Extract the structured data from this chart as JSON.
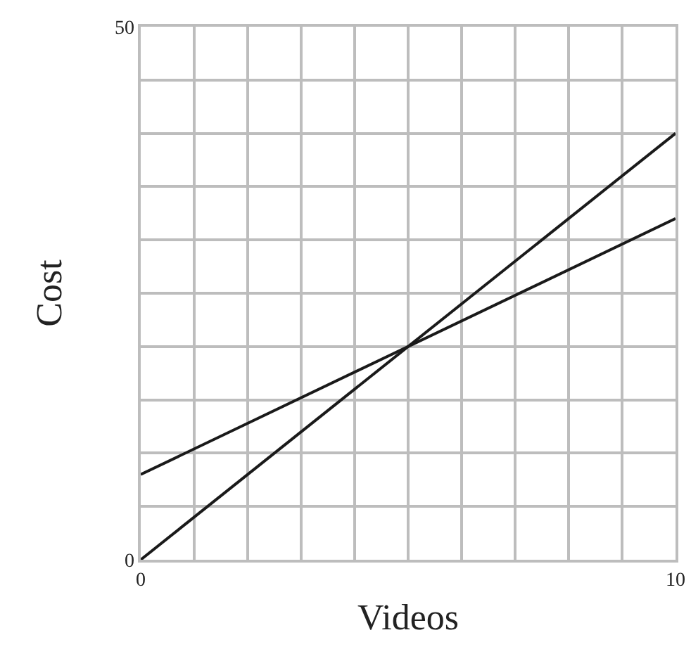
{
  "chart_data": {
    "type": "line",
    "xlabel": "Videos",
    "ylabel": "Cost",
    "x": [
      0,
      10
    ],
    "series": [
      {
        "color": "#1a1a1a",
        "values": [
          0,
          40
        ]
      },
      {
        "color": "#1a1a1a",
        "values": [
          8,
          32
        ]
      }
    ],
    "xlim": [
      0,
      10
    ],
    "ylim": [
      0,
      50
    ],
    "xticks": [
      0,
      {
        "value": 1,
        "label": null
      },
      {
        "value": 2,
        "label": null
      },
      {
        "value": 3,
        "label": null
      },
      {
        "value": 4,
        "label": null
      },
      {
        "value": 5,
        "label": null
      },
      {
        "value": 6,
        "label": null
      },
      {
        "value": 7,
        "label": null
      },
      {
        "value": 8,
        "label": null
      },
      {
        "value": 9,
        "label": null
      },
      10
    ],
    "yticks": [
      0,
      {
        "value": 5,
        "label": null
      },
      {
        "value": 10,
        "label": null
      },
      {
        "value": 15,
        "label": null
      },
      {
        "value": 20,
        "label": null
      },
      {
        "value": 25,
        "label": null
      },
      {
        "value": 30,
        "label": null
      },
      {
        "value": 35,
        "label": null
      },
      {
        "value": 40,
        "label": null
      },
      {
        "value": 45,
        "label": null
      },
      50
    ],
    "grid": true,
    "marker": "none",
    "line_style": "solid"
  }
}
